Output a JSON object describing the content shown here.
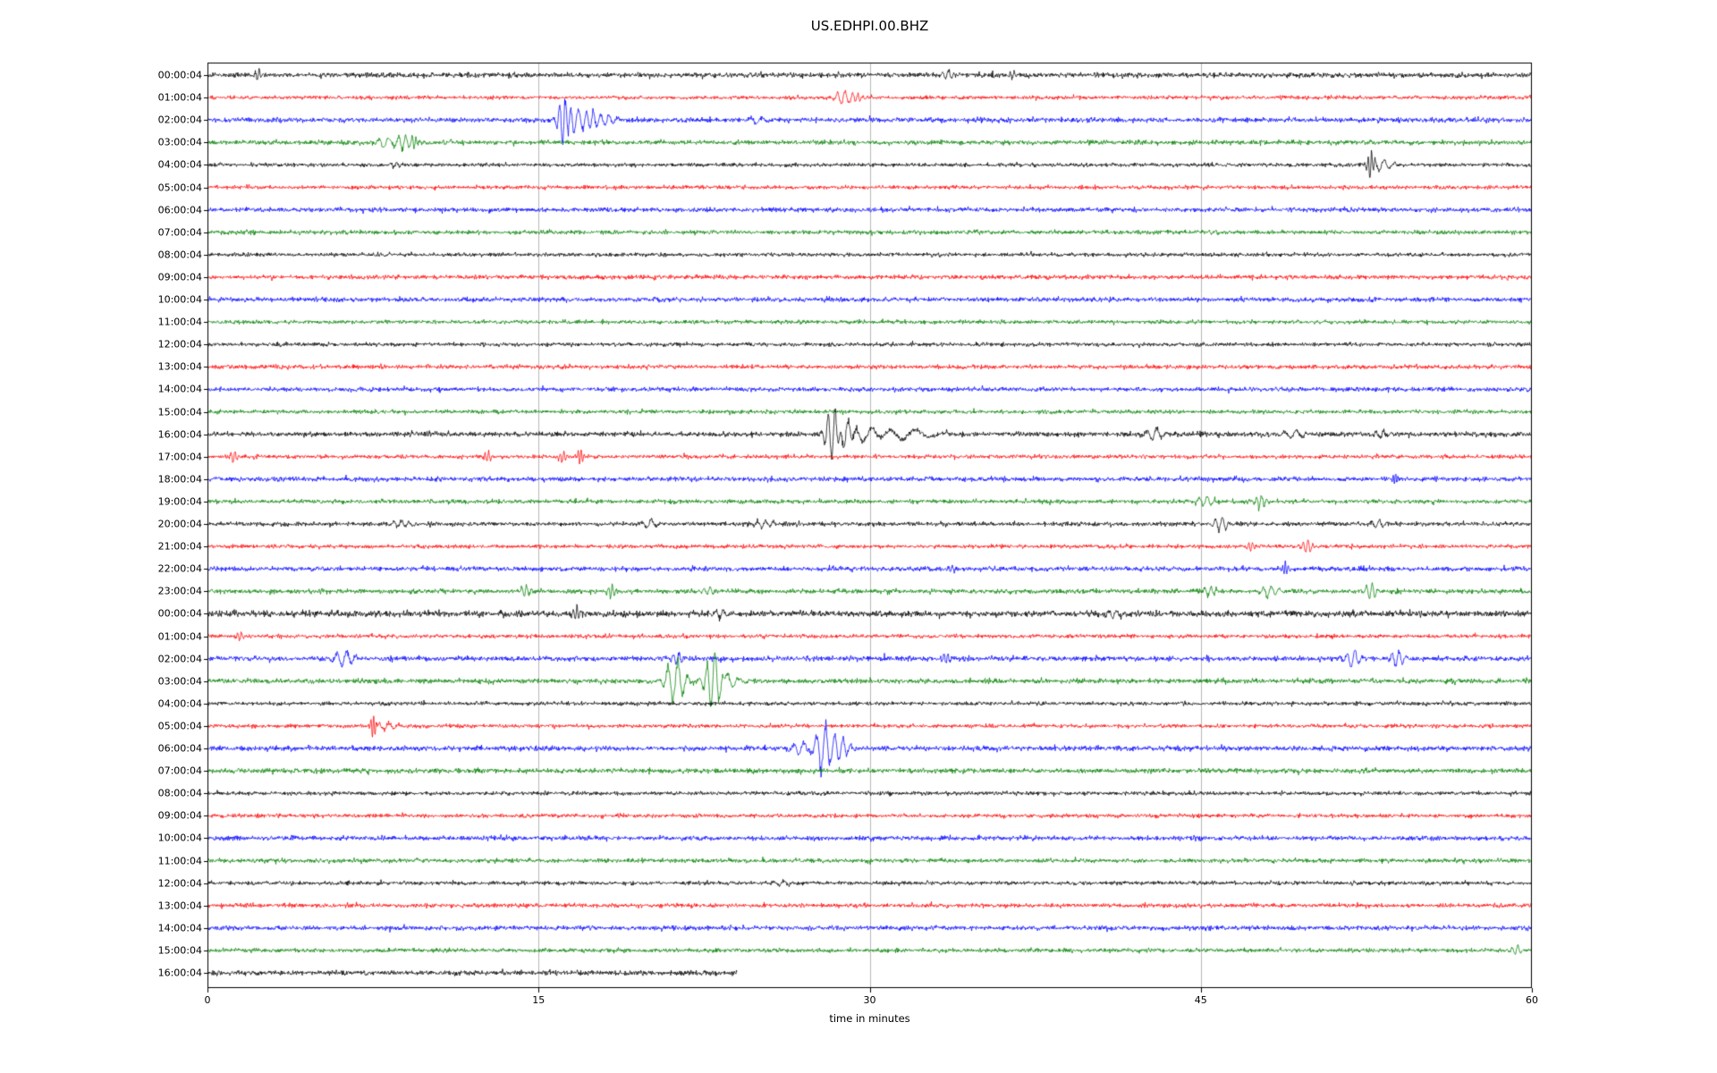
{
  "title": "US.EDHPI.00.BHZ",
  "chart_data": {
    "type": "line",
    "title": "US.EDHPI.00.BHZ",
    "subtitle": "helicorder / day-plot of seismic traces, one hour per row",
    "xlabel": "time in minutes",
    "ylabel": "",
    "xlim": [
      0,
      60
    ],
    "xticks": [
      0,
      15,
      30,
      45,
      60
    ],
    "grid_minutes": [
      15,
      30,
      45
    ],
    "grid_on": true,
    "grid_color": "#b7b7b7",
    "axis_color": "#000000",
    "background_color": "#ffffff",
    "colors": {
      "black": "#000000",
      "red": "#ff0000",
      "blue": "#0000ff",
      "green": "#008000"
    },
    "color_cycle": [
      "black",
      "red",
      "blue",
      "green"
    ],
    "rows": [
      {
        "label": "00:00:04",
        "color": "black",
        "noise": 1.3,
        "extent": 60,
        "events": [
          {
            "t": 2.3,
            "amp": 6,
            "dur": 0.2
          },
          {
            "t": 33.5,
            "amp": 5,
            "dur": 0.3
          },
          {
            "t": 36.5,
            "amp": 3,
            "dur": 0.2
          }
        ]
      },
      {
        "label": "01:00:04",
        "color": "red",
        "noise": 1.0,
        "extent": 60,
        "events": [
          {
            "t": 28.8,
            "amp": 7,
            "dur": 0.4
          },
          {
            "t": 29.4,
            "amp": 5,
            "dur": 0.25
          }
        ]
      },
      {
        "label": "02:00:04",
        "color": "blue",
        "noise": 1.3,
        "extent": 60,
        "events": [
          {
            "t": 16.15,
            "amp": 28,
            "dur": 0.3
          },
          {
            "t": 16.7,
            "amp": 12,
            "dur": 0.45
          },
          {
            "t": 17.4,
            "amp": 10,
            "dur": 0.35
          },
          {
            "t": 18.1,
            "amp": 6,
            "dur": 0.4
          },
          {
            "t": 25.0,
            "amp": 3,
            "dur": 0.6
          }
        ]
      },
      {
        "label": "03:00:04",
        "color": "green",
        "noise": 1.2,
        "extent": 60,
        "events": [
          {
            "t": 8.1,
            "amp": 6,
            "dur": 0.5
          },
          {
            "t": 8.9,
            "amp": 8,
            "dur": 0.35
          },
          {
            "t": 9.4,
            "amp": 7,
            "dur": 0.2
          }
        ]
      },
      {
        "label": "04:00:04",
        "color": "black",
        "noise": 1.0,
        "extent": 60,
        "events": [
          {
            "t": 8.5,
            "amp": 3,
            "dur": 0.3
          },
          {
            "t": 52.7,
            "amp": 15,
            "dur": 0.18
          },
          {
            "t": 53.2,
            "amp": 6,
            "dur": 0.5
          }
        ]
      },
      {
        "label": "05:00:04",
        "color": "red",
        "noise": 1.0,
        "extent": 60,
        "events": []
      },
      {
        "label": "06:00:04",
        "color": "blue",
        "noise": 1.2,
        "extent": 60,
        "events": []
      },
      {
        "label": "07:00:04",
        "color": "green",
        "noise": 1.1,
        "extent": 60,
        "events": []
      },
      {
        "label": "08:00:04",
        "color": "black",
        "noise": 1.0,
        "extent": 60,
        "events": []
      },
      {
        "label": "09:00:04",
        "color": "red",
        "noise": 1.1,
        "extent": 60,
        "events": []
      },
      {
        "label": "10:00:04",
        "color": "blue",
        "noise": 1.2,
        "extent": 60,
        "events": []
      },
      {
        "label": "11:00:04",
        "color": "green",
        "noise": 1.0,
        "extent": 60,
        "events": []
      },
      {
        "label": "12:00:04",
        "color": "black",
        "noise": 1.0,
        "extent": 60,
        "events": []
      },
      {
        "label": "13:00:04",
        "color": "red",
        "noise": 1.1,
        "extent": 60,
        "events": []
      },
      {
        "label": "14:00:04",
        "color": "blue",
        "noise": 1.1,
        "extent": 60,
        "events": []
      },
      {
        "label": "15:00:04",
        "color": "green",
        "noise": 1.0,
        "extent": 60,
        "events": []
      },
      {
        "label": "16:00:04",
        "color": "black",
        "noise": 1.3,
        "extent": 60,
        "events": [
          {
            "t": 28.35,
            "amp": 30,
            "dur": 0.35
          },
          {
            "t": 28.9,
            "amp": 14,
            "dur": 0.5
          },
          {
            "t": 29.9,
            "amp": 8,
            "dur": 1.0
          },
          {
            "t": 31.8,
            "amp": 5,
            "dur": 1.5
          },
          {
            "t": 42.9,
            "amp": 7,
            "dur": 0.5
          },
          {
            "t": 49.2,
            "amp": 4,
            "dur": 0.6
          },
          {
            "t": 53.2,
            "amp": 4,
            "dur": 0.4
          }
        ]
      },
      {
        "label": "17:00:04",
        "color": "red",
        "noise": 1.0,
        "extent": 60,
        "events": [
          {
            "t": 1.2,
            "amp": 8,
            "dur": 0.2
          },
          {
            "t": 12.7,
            "amp": 6,
            "dur": 0.18
          },
          {
            "t": 16.1,
            "amp": 7,
            "dur": 0.18
          },
          {
            "t": 16.9,
            "amp": 9,
            "dur": 0.15
          }
        ]
      },
      {
        "label": "18:00:04",
        "color": "blue",
        "noise": 1.2,
        "extent": 60,
        "events": [
          {
            "t": 53.8,
            "amp": 7,
            "dur": 0.12
          }
        ]
      },
      {
        "label": "19:00:04",
        "color": "green",
        "noise": 1.1,
        "extent": 60,
        "events": [
          {
            "t": 45.2,
            "amp": 5,
            "dur": 0.4
          },
          {
            "t": 47.7,
            "amp": 8,
            "dur": 0.25
          }
        ]
      },
      {
        "label": "20:00:04",
        "color": "black",
        "noise": 1.1,
        "extent": 60,
        "events": [
          {
            "t": 8.7,
            "amp": 4,
            "dur": 0.4
          },
          {
            "t": 20.0,
            "amp": 4,
            "dur": 0.5
          },
          {
            "t": 25.2,
            "amp": 4,
            "dur": 0.4
          },
          {
            "t": 45.9,
            "amp": 8,
            "dur": 0.35
          },
          {
            "t": 53.0,
            "amp": 4,
            "dur": 0.4
          }
        ]
      },
      {
        "label": "21:00:04",
        "color": "red",
        "noise": 1.0,
        "extent": 60,
        "events": [
          {
            "t": 47.3,
            "amp": 6,
            "dur": 0.2
          },
          {
            "t": 49.8,
            "amp": 7,
            "dur": 0.25
          }
        ]
      },
      {
        "label": "22:00:04",
        "color": "blue",
        "noise": 1.2,
        "extent": 60,
        "events": [
          {
            "t": 33.7,
            "amp": 5,
            "dur": 0.2
          },
          {
            "t": 48.8,
            "amp": 8,
            "dur": 0.14
          }
        ]
      },
      {
        "label": "23:00:04",
        "color": "green",
        "noise": 1.2,
        "extent": 60,
        "events": [
          {
            "t": 14.4,
            "amp": 6,
            "dur": 0.25
          },
          {
            "t": 18.3,
            "amp": 8,
            "dur": 0.2
          },
          {
            "t": 22.7,
            "amp": 5,
            "dur": 0.3
          },
          {
            "t": 45.4,
            "amp": 5,
            "dur": 0.3
          },
          {
            "t": 48.1,
            "amp": 7,
            "dur": 0.4
          },
          {
            "t": 52.7,
            "amp": 9,
            "dur": 0.3
          }
        ]
      },
      {
        "label": "00:00:04",
        "color": "black",
        "noise": 1.6,
        "extent": 60,
        "events": [
          {
            "t": 16.7,
            "amp": 9,
            "dur": 0.18
          },
          {
            "t": 23.3,
            "amp": 5,
            "dur": 0.4
          },
          {
            "t": 41.1,
            "amp": 5,
            "dur": 0.4
          }
        ]
      },
      {
        "label": "01:00:04",
        "color": "red",
        "noise": 1.0,
        "extent": 60,
        "events": [
          {
            "t": 1.5,
            "amp": 5,
            "dur": 0.2
          }
        ]
      },
      {
        "label": "02:00:04",
        "color": "blue",
        "noise": 1.3,
        "extent": 60,
        "events": [
          {
            "t": 6.2,
            "amp": 9,
            "dur": 0.5
          },
          {
            "t": 21.3,
            "amp": 6,
            "dur": 0.3
          },
          {
            "t": 33.5,
            "amp": 6,
            "dur": 0.2
          },
          {
            "t": 51.9,
            "amp": 9,
            "dur": 0.4
          },
          {
            "t": 53.9,
            "amp": 9,
            "dur": 0.35
          }
        ]
      },
      {
        "label": "03:00:04",
        "color": "green",
        "noise": 1.3,
        "extent": 60,
        "events": [
          {
            "t": 21.2,
            "amp": 24,
            "dur": 0.5
          },
          {
            "t": 22.9,
            "amp": 30,
            "dur": 0.4
          },
          {
            "t": 23.4,
            "amp": 10,
            "dur": 0.6
          }
        ]
      },
      {
        "label": "04:00:04",
        "color": "black",
        "noise": 1.0,
        "extent": 60,
        "events": []
      },
      {
        "label": "05:00:04",
        "color": "red",
        "noise": 1.0,
        "extent": 60,
        "events": [
          {
            "t": 7.5,
            "amp": 13,
            "dur": 0.14
          },
          {
            "t": 8.1,
            "amp": 4,
            "dur": 0.5
          }
        ]
      },
      {
        "label": "06:00:04",
        "color": "blue",
        "noise": 1.3,
        "extent": 60,
        "events": [
          {
            "t": 26.9,
            "amp": 8,
            "dur": 0.5
          },
          {
            "t": 27.9,
            "amp": 26,
            "dur": 0.45
          },
          {
            "t": 28.7,
            "amp": 12,
            "dur": 0.4
          }
        ]
      },
      {
        "label": "07:00:04",
        "color": "green",
        "noise": 1.3,
        "extent": 60,
        "events": []
      },
      {
        "label": "08:00:04",
        "color": "black",
        "noise": 1.0,
        "extent": 60,
        "events": []
      },
      {
        "label": "09:00:04",
        "color": "red",
        "noise": 1.0,
        "extent": 60,
        "events": []
      },
      {
        "label": "10:00:04",
        "color": "blue",
        "noise": 1.2,
        "extent": 60,
        "events": []
      },
      {
        "label": "11:00:04",
        "color": "green",
        "noise": 1.1,
        "extent": 60,
        "events": []
      },
      {
        "label": "12:00:04",
        "color": "black",
        "noise": 1.0,
        "extent": 60,
        "events": [
          {
            "t": 26.0,
            "amp": 3,
            "dur": 0.5
          }
        ]
      },
      {
        "label": "13:00:04",
        "color": "red",
        "noise": 1.1,
        "extent": 60,
        "events": []
      },
      {
        "label": "14:00:04",
        "color": "blue",
        "noise": 1.2,
        "extent": 60,
        "events": []
      },
      {
        "label": "15:00:04",
        "color": "green",
        "noise": 1.1,
        "extent": 60,
        "events": [
          {
            "t": 59.3,
            "amp": 5,
            "dur": 0.3
          }
        ]
      },
      {
        "label": "16:00:04",
        "color": "black",
        "noise": 1.3,
        "extent": 24,
        "events": []
      }
    ]
  }
}
